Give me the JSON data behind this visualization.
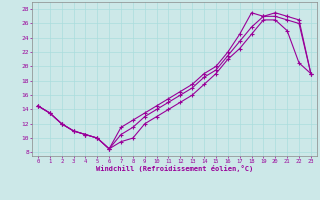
{
  "xlabel": "Windchill (Refroidissement éolien,°C)",
  "bg_color": "#cce8e8",
  "line_color": "#990099",
  "grid_color": "#aadddd",
  "xlim": [
    -0.5,
    23.5
  ],
  "ylim": [
    7.5,
    29
  ],
  "xticks": [
    0,
    1,
    2,
    3,
    4,
    5,
    6,
    7,
    8,
    9,
    10,
    11,
    12,
    13,
    14,
    15,
    16,
    17,
    18,
    19,
    20,
    21,
    22,
    23
  ],
  "yticks": [
    8,
    10,
    12,
    14,
    16,
    18,
    20,
    22,
    24,
    26,
    28
  ],
  "line1_x": [
    0,
    1,
    2,
    3,
    4,
    5,
    6,
    7,
    8,
    9,
    10,
    11,
    12,
    13,
    14,
    15,
    16,
    17,
    18,
    19,
    20,
    21,
    22,
    23
  ],
  "line1_y": [
    14.5,
    13.5,
    12.0,
    11.0,
    10.5,
    10.0,
    8.5,
    9.5,
    10.0,
    12.0,
    13.0,
    14.0,
    15.0,
    16.0,
    17.5,
    19.0,
    21.0,
    22.5,
    24.5,
    26.5,
    26.5,
    25.0,
    20.5,
    19.0
  ],
  "line2_x": [
    0,
    1,
    2,
    3,
    4,
    5,
    6,
    7,
    8,
    9,
    10,
    11,
    12,
    13,
    14,
    15,
    16,
    17,
    18,
    19,
    20,
    21,
    22,
    23
  ],
  "line2_y": [
    14.5,
    13.5,
    12.0,
    11.0,
    10.5,
    10.0,
    8.5,
    11.5,
    12.5,
    13.5,
    14.5,
    15.5,
    16.5,
    17.5,
    19.0,
    20.0,
    22.0,
    24.5,
    27.5,
    27.0,
    27.5,
    27.0,
    26.5,
    19.0
  ],
  "line3_x": [
    0,
    1,
    2,
    3,
    4,
    5,
    6,
    7,
    8,
    9,
    10,
    11,
    12,
    13,
    14,
    15,
    16,
    17,
    18,
    19,
    20,
    21,
    22,
    23
  ],
  "line3_y": [
    14.5,
    13.5,
    12.0,
    11.0,
    10.5,
    10.0,
    8.5,
    10.5,
    11.5,
    13.0,
    14.0,
    15.0,
    16.0,
    17.0,
    18.5,
    19.5,
    21.5,
    23.5,
    25.5,
    27.0,
    27.0,
    26.5,
    26.0,
    19.0
  ]
}
